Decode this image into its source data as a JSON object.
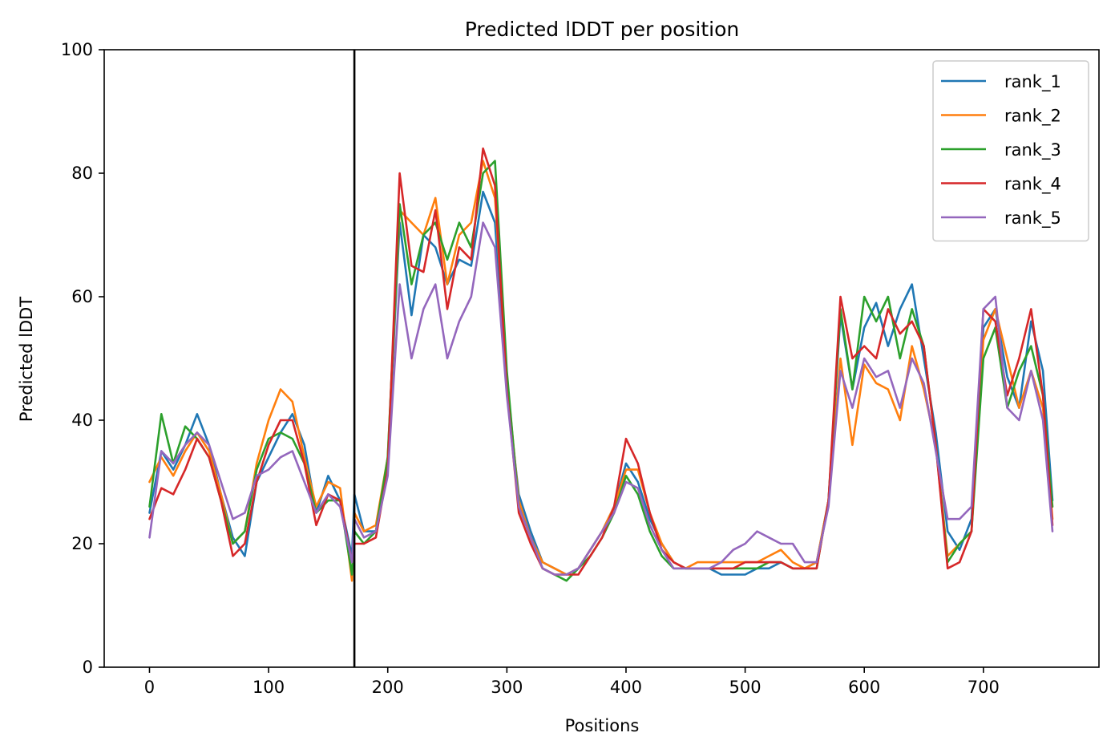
{
  "chart_data": {
    "type": "line",
    "title": "Predicted lDDT per position",
    "xlabel": "Positions",
    "ylabel": "Predicted lDDT",
    "xlim": [
      -38,
      797
    ],
    "ylim": [
      0,
      100
    ],
    "xticks": [
      0,
      100,
      200,
      300,
      400,
      500,
      600,
      700
    ],
    "yticks": [
      0,
      20,
      40,
      60,
      80,
      100
    ],
    "grid": false,
    "legend_position": "top-right",
    "vline_x": 172,
    "series": [
      {
        "name": "rank_1",
        "color": "#1f77b4",
        "x": [
          0,
          10,
          20,
          30,
          40,
          50,
          60,
          70,
          80,
          90,
          100,
          110,
          120,
          130,
          140,
          150,
          160,
          170,
          172,
          180,
          190,
          200,
          210,
          220,
          230,
          240,
          250,
          260,
          270,
          280,
          290,
          300,
          310,
          320,
          330,
          340,
          350,
          360,
          370,
          380,
          390,
          400,
          410,
          420,
          430,
          440,
          450,
          460,
          470,
          480,
          490,
          500,
          510,
          520,
          530,
          540,
          550,
          560,
          570,
          580,
          590,
          600,
          610,
          620,
          630,
          640,
          650,
          660,
          670,
          680,
          690,
          700,
          710,
          720,
          730,
          740,
          750,
          758
        ],
        "y": [
          25,
          35,
          32,
          36,
          41,
          36,
          28,
          21,
          18,
          30,
          34,
          38,
          41,
          36,
          25,
          31,
          27,
          18,
          28,
          22,
          22,
          33,
          72,
          57,
          70,
          68,
          62,
          66,
          65,
          77,
          72,
          45,
          28,
          22,
          17,
          16,
          15,
          16,
          19,
          22,
          26,
          33,
          30,
          24,
          20,
          17,
          16,
          16,
          16,
          15,
          15,
          15,
          16,
          16,
          17,
          16,
          16,
          17,
          27,
          57,
          45,
          55,
          59,
          52,
          58,
          62,
          50,
          38,
          22,
          19,
          24,
          55,
          58,
          47,
          42,
          56,
          48,
          27
        ]
      },
      {
        "name": "rank_2",
        "color": "#ff7f0e",
        "x": [
          0,
          10,
          20,
          30,
          40,
          50,
          60,
          70,
          80,
          90,
          100,
          110,
          120,
          130,
          140,
          150,
          160,
          170,
          172,
          180,
          190,
          200,
          210,
          220,
          230,
          240,
          250,
          260,
          270,
          280,
          290,
          300,
          310,
          320,
          330,
          340,
          350,
          360,
          370,
          380,
          390,
          400,
          410,
          420,
          430,
          440,
          450,
          460,
          470,
          480,
          490,
          500,
          510,
          520,
          530,
          540,
          550,
          560,
          570,
          580,
          590,
          600,
          610,
          620,
          630,
          640,
          650,
          660,
          670,
          680,
          690,
          700,
          710,
          720,
          730,
          740,
          750,
          758
        ],
        "y": [
          30,
          34,
          31,
          35,
          38,
          35,
          28,
          20,
          22,
          33,
          40,
          45,
          43,
          34,
          26,
          30,
          29,
          14,
          25,
          22,
          23,
          34,
          74,
          72,
          70,
          76,
          62,
          70,
          72,
          82,
          76,
          47,
          27,
          21,
          17,
          16,
          15,
          16,
          19,
          22,
          26,
          32,
          32,
          25,
          20,
          17,
          16,
          17,
          17,
          17,
          17,
          17,
          17,
          18,
          19,
          17,
          16,
          17,
          27,
          50,
          36,
          49,
          46,
          45,
          40,
          52,
          45,
          36,
          18,
          20,
          22,
          53,
          58,
          50,
          42,
          48,
          42,
          24
        ]
      },
      {
        "name": "rank_3",
        "color": "#2ca02c",
        "x": [
          0,
          10,
          20,
          30,
          40,
          50,
          60,
          70,
          80,
          90,
          100,
          110,
          120,
          130,
          140,
          150,
          160,
          170,
          172,
          180,
          190,
          200,
          210,
          220,
          230,
          240,
          250,
          260,
          270,
          280,
          290,
          300,
          310,
          320,
          330,
          340,
          350,
          360,
          370,
          380,
          390,
          400,
          410,
          420,
          430,
          440,
          450,
          460,
          470,
          480,
          490,
          500,
          510,
          520,
          530,
          540,
          550,
          560,
          570,
          580,
          590,
          600,
          610,
          620,
          630,
          640,
          650,
          660,
          670,
          680,
          690,
          700,
          710,
          720,
          730,
          740,
          750,
          758
        ],
        "y": [
          26,
          41,
          33,
          39,
          37,
          34,
          27,
          20,
          22,
          32,
          37,
          38,
          37,
          33,
          25,
          27,
          27,
          15,
          22,
          20,
          22,
          34,
          75,
          62,
          70,
          72,
          66,
          72,
          68,
          80,
          82,
          48,
          26,
          21,
          16,
          15,
          14,
          16,
          18,
          21,
          25,
          31,
          28,
          22,
          18,
          16,
          16,
          16,
          16,
          16,
          16,
          16,
          16,
          17,
          17,
          16,
          16,
          16,
          27,
          58,
          45,
          60,
          56,
          60,
          50,
          58,
          52,
          36,
          17,
          20,
          22,
          50,
          55,
          42,
          48,
          52,
          44,
          26
        ]
      },
      {
        "name": "rank_4",
        "color": "#d62728",
        "x": [
          0,
          10,
          20,
          30,
          40,
          50,
          60,
          70,
          80,
          90,
          100,
          110,
          120,
          130,
          140,
          150,
          160,
          170,
          172,
          180,
          190,
          200,
          210,
          220,
          230,
          240,
          250,
          260,
          270,
          280,
          290,
          300,
          310,
          320,
          330,
          340,
          350,
          360,
          370,
          380,
          390,
          400,
          410,
          420,
          430,
          440,
          450,
          460,
          470,
          480,
          490,
          500,
          510,
          520,
          530,
          540,
          550,
          560,
          570,
          580,
          590,
          600,
          610,
          620,
          630,
          640,
          650,
          660,
          670,
          680,
          690,
          700,
          710,
          720,
          730,
          740,
          750,
          758
        ],
        "y": [
          24,
          29,
          28,
          32,
          37,
          34,
          27,
          18,
          20,
          30,
          36,
          40,
          40,
          33,
          23,
          28,
          27,
          17,
          20,
          20,
          21,
          32,
          80,
          65,
          64,
          74,
          58,
          68,
          66,
          84,
          78,
          45,
          25,
          20,
          16,
          15,
          15,
          15,
          18,
          21,
          26,
          37,
          33,
          25,
          19,
          17,
          16,
          16,
          16,
          16,
          16,
          17,
          17,
          17,
          17,
          16,
          16,
          16,
          27,
          60,
          50,
          52,
          50,
          58,
          54,
          56,
          52,
          36,
          16,
          17,
          22,
          58,
          56,
          44,
          50,
          58,
          44,
          23
        ]
      },
      {
        "name": "rank_5",
        "color": "#9467bd",
        "x": [
          0,
          10,
          20,
          30,
          40,
          50,
          60,
          70,
          80,
          90,
          100,
          110,
          120,
          130,
          140,
          150,
          160,
          170,
          172,
          180,
          190,
          200,
          210,
          220,
          230,
          240,
          250,
          260,
          270,
          280,
          290,
          300,
          310,
          320,
          330,
          340,
          350,
          360,
          370,
          380,
          390,
          400,
          410,
          420,
          430,
          440,
          450,
          460,
          470,
          480,
          490,
          500,
          510,
          520,
          530,
          540,
          550,
          560,
          570,
          580,
          590,
          600,
          610,
          620,
          630,
          640,
          650,
          660,
          670,
          680,
          690,
          700,
          710,
          720,
          730,
          740,
          750,
          758
        ],
        "y": [
          21,
          35,
          33,
          36,
          38,
          36,
          30,
          24,
          25,
          31,
          32,
          34,
          35,
          30,
          25,
          28,
          26,
          17,
          24,
          21,
          22,
          31,
          62,
          50,
          58,
          62,
          50,
          56,
          60,
          72,
          68,
          44,
          26,
          21,
          16,
          15,
          15,
          16,
          19,
          22,
          25,
          30,
          29,
          23,
          19,
          16,
          16,
          16,
          16,
          17,
          19,
          20,
          22,
          21,
          20,
          20,
          17,
          17,
          26,
          48,
          42,
          50,
          47,
          48,
          42,
          50,
          46,
          35,
          24,
          24,
          26,
          58,
          60,
          42,
          40,
          48,
          40,
          22
        ]
      }
    ]
  }
}
